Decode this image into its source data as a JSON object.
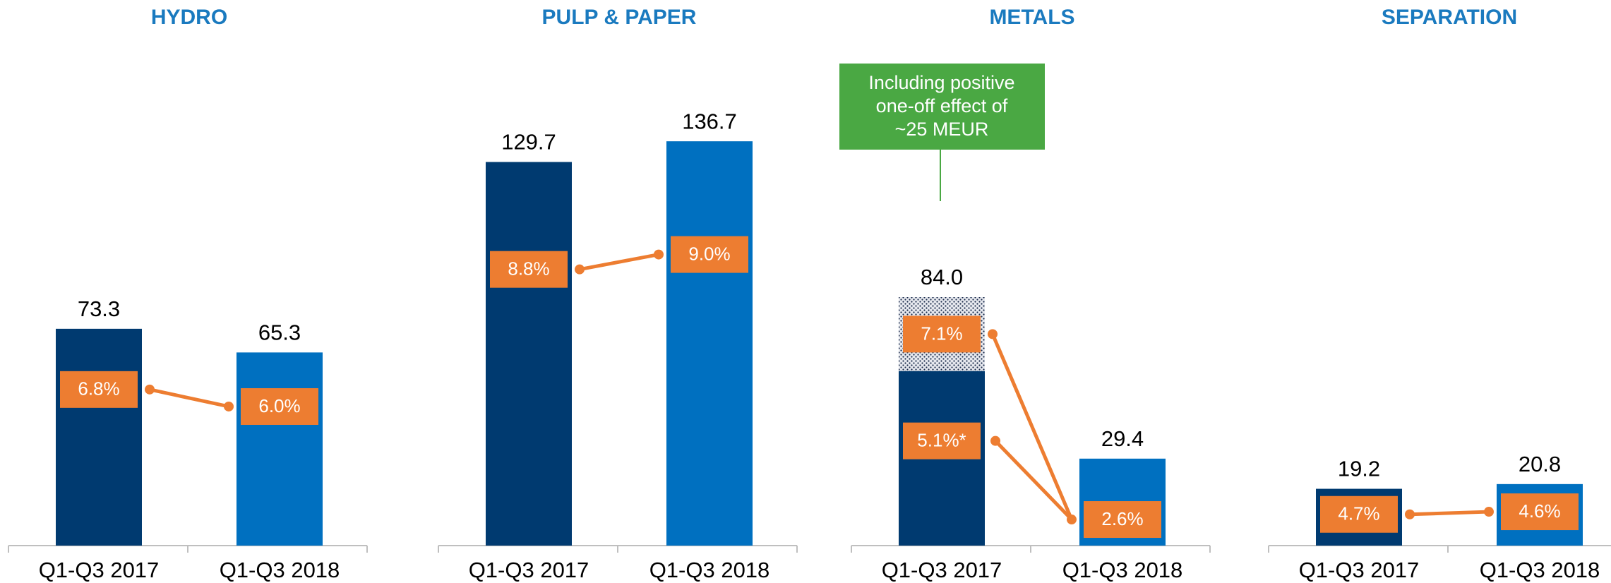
{
  "chart_data": [
    {
      "type": "bar",
      "title": "HYDRO",
      "categories": [
        "Q1-Q3 2017",
        "Q1-Q3 2018"
      ],
      "values": [
        73.3,
        65.3
      ],
      "margins": [
        6.8,
        6.0
      ],
      "margin_labels": [
        "6.8%",
        "6.0%"
      ],
      "colors": [
        "#003a70",
        "#0070c0"
      ]
    },
    {
      "type": "bar",
      "title": "PULP & PAPER",
      "categories": [
        "Q1-Q3 2017",
        "Q1-Q3 2018"
      ],
      "values": [
        129.7,
        136.7
      ],
      "margins": [
        8.8,
        9.0
      ],
      "margin_labels": [
        "8.8%",
        "9.0%"
      ],
      "colors": [
        "#003a70",
        "#0070c0"
      ]
    },
    {
      "type": "bar",
      "title": "METALS",
      "categories": [
        "Q1-Q3 2017",
        "Q1-Q3 2018"
      ],
      "values": [
        84.0,
        29.4
      ],
      "value_labels": [
        "84.0",
        "29.4"
      ],
      "one_off_value": 25,
      "annotation": [
        "Including positive",
        "one-off effect of",
        "~25 MEUR"
      ],
      "margins": [
        7.1,
        2.6
      ],
      "margin_labels": [
        "7.1%",
        "2.6%"
      ],
      "adjusted_margin": 5.1,
      "adjusted_margin_label": "5.1%*",
      "colors": [
        "#003a70",
        "#0070c0"
      ]
    },
    {
      "type": "bar",
      "title": "SEPARATION",
      "categories": [
        "Q1-Q3 2017",
        "Q1-Q3 2018"
      ],
      "values": [
        19.2,
        20.8
      ],
      "margins": [
        4.7,
        4.6
      ],
      "margin_labels": [
        "4.7%",
        "4.6%"
      ],
      "colors": [
        "#003a70",
        "#0070c0"
      ]
    }
  ]
}
